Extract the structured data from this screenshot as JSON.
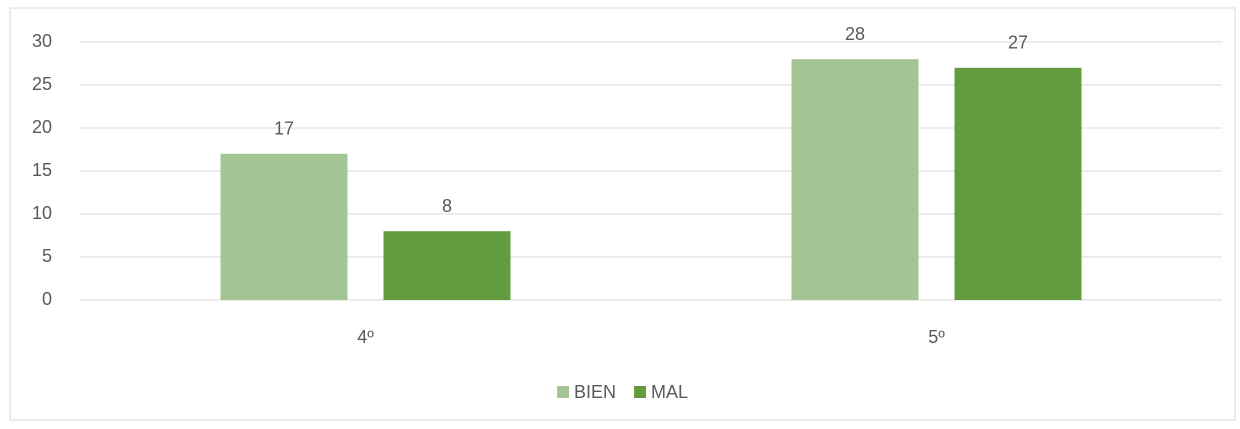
{
  "chart_data": {
    "type": "bar",
    "categories": [
      "4º",
      "5º"
    ],
    "series": [
      {
        "name": "BIEN",
        "color": "#a3c493",
        "values": [
          17,
          28
        ]
      },
      {
        "name": "MAL",
        "color": "#629c3f",
        "values": [
          8,
          27
        ]
      }
    ],
    "ylim": [
      0,
      30
    ],
    "yticks": [
      0,
      5,
      10,
      15,
      20,
      25,
      30
    ],
    "grid": true,
    "legend": "bottom",
    "data_labels": true
  }
}
